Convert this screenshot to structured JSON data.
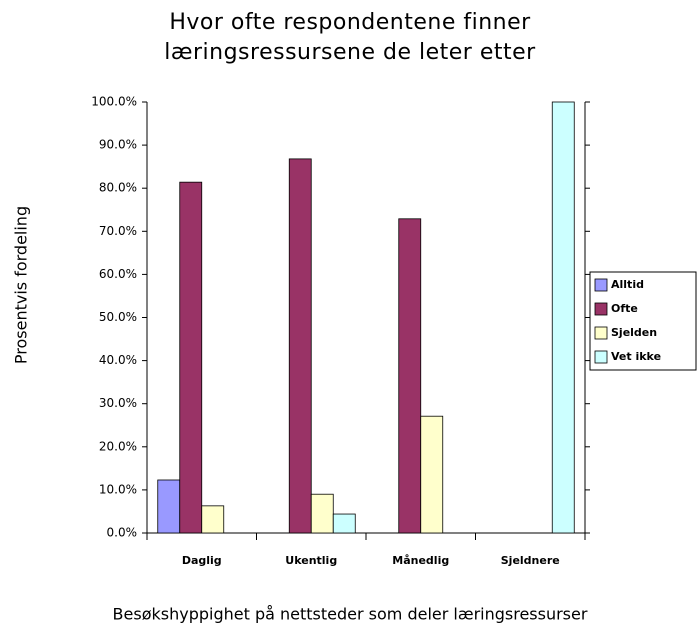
{
  "chart_data": {
    "type": "bar",
    "title": "Hvor ofte respondentene finner læringsressursene de leter etter",
    "x_label": "Besøkshyppighet på nettsteder som deler læringsressurser",
    "y_label": "Prosentvis fordeling",
    "categories": [
      "Daglig",
      "Ukentlig",
      "Månedlig",
      "Sjeldnere"
    ],
    "series": [
      {
        "name": "Alltid",
        "color": "#9999ff",
        "values": [
          12.3,
          0,
          0,
          0
        ]
      },
      {
        "name": "Ofte",
        "color": "#993366",
        "values": [
          81.4,
          86.8,
          72.9,
          0
        ]
      },
      {
        "name": "Sjelden",
        "color": "#ffffcc",
        "values": [
          6.3,
          9.0,
          27.1,
          0
        ]
      },
      {
        "name": "Vet ikke",
        "color": "#ccffff",
        "values": [
          0,
          4.4,
          0,
          100
        ]
      }
    ],
    "ylim": [
      0,
      100
    ],
    "yticks": [
      {
        "value": 0,
        "label": "0.0%"
      },
      {
        "value": 10,
        "label": "10.0%"
      },
      {
        "value": 20,
        "label": "20.0%"
      },
      {
        "value": 30,
        "label": "30.0%"
      },
      {
        "value": 40,
        "label": "40.0%"
      },
      {
        "value": 50,
        "label": "50.0%"
      },
      {
        "value": 60,
        "label": "60.0%"
      },
      {
        "value": 70,
        "label": "70.0%"
      },
      {
        "value": 80,
        "label": "80.0%"
      },
      {
        "value": 90,
        "label": "90.0%"
      },
      {
        "value": 100,
        "label": "100.0%"
      }
    ],
    "grid": false,
    "legend": "right"
  }
}
